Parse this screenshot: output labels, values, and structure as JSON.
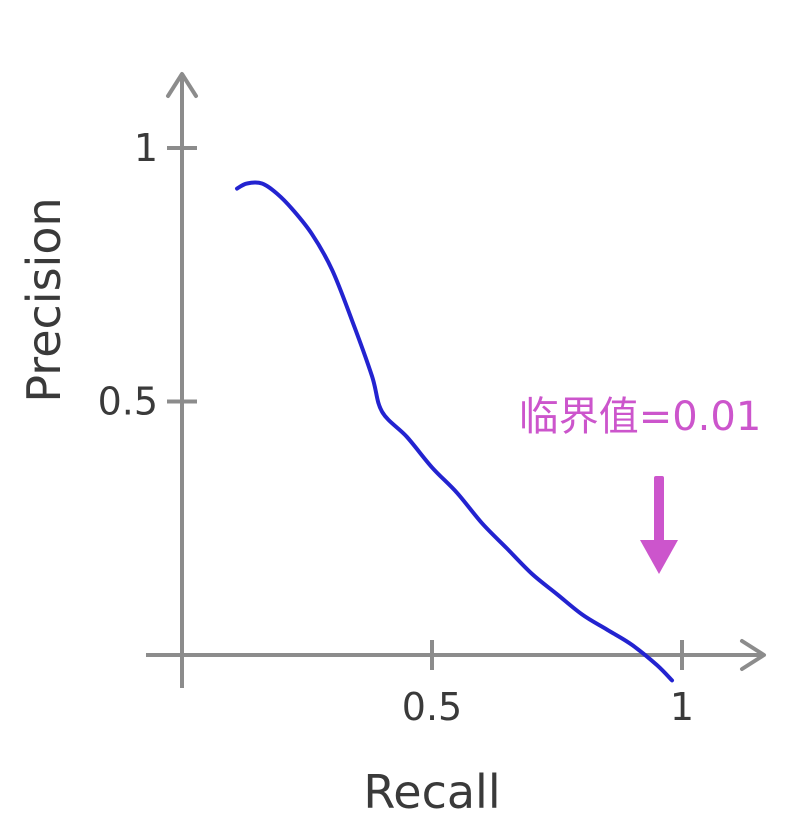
{
  "chart_data": {
    "type": "line",
    "title": "",
    "xlabel": "Recall",
    "ylabel": "Precision",
    "xlim": [
      0,
      1.1
    ],
    "ylim": [
      0,
      1.15
    ],
    "x_ticks": [
      {
        "value": 0.5,
        "label": "0.5"
      },
      {
        "value": 1,
        "label": "1"
      }
    ],
    "y_ticks": [
      {
        "value": 0.5,
        "label": "0.5"
      },
      {
        "value": 1,
        "label": "1"
      }
    ],
    "grid": false,
    "series": [
      {
        "color": "#2323d0",
        "x": [
          0.11,
          0.13,
          0.16,
          0.19,
          0.22,
          0.26,
          0.3,
          0.34,
          0.38,
          0.4,
          0.45,
          0.5,
          0.55,
          0.6,
          0.65,
          0.7,
          0.75,
          0.8,
          0.85,
          0.9,
          0.95,
          0.98
        ],
        "y": [
          0.92,
          0.93,
          0.93,
          0.91,
          0.88,
          0.83,
          0.76,
          0.66,
          0.55,
          0.48,
          0.43,
          0.37,
          0.32,
          0.26,
          0.21,
          0.16,
          0.12,
          0.08,
          0.05,
          0.02,
          -0.02,
          -0.05
        ]
      }
    ],
    "annotations": [
      {
        "text": "临界值=0.01",
        "color": "#cc55cc",
        "points_to": {
          "x": 0.97,
          "y": 0.2
        }
      }
    ]
  }
}
